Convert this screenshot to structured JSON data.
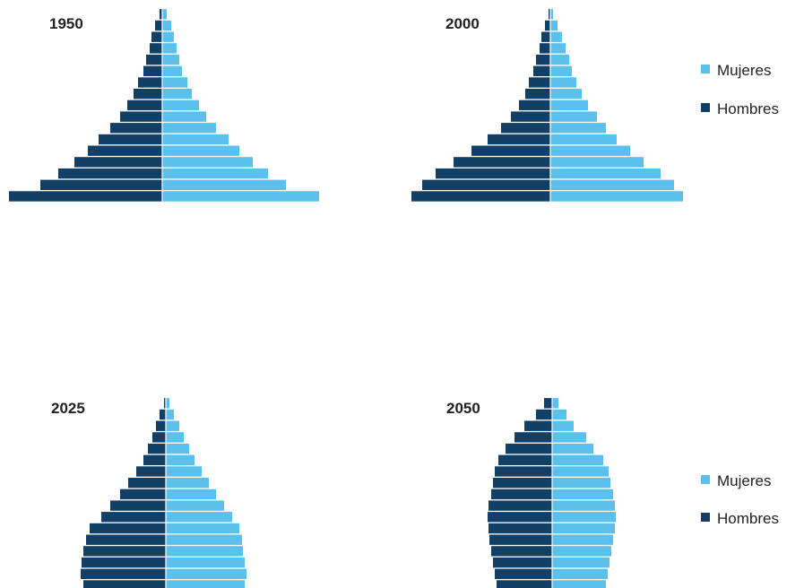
{
  "colors": {
    "mujeres": "#5bc0eb",
    "hombres": "#123f66",
    "divider": "#ffffff"
  },
  "legends": [
    {
      "items": [
        {
          "label": "Mujeres",
          "color": "#5bc0eb"
        },
        {
          "label": "Hombres",
          "color": "#123f66"
        }
      ]
    },
    {
      "items": [
        {
          "label": "Mujeres",
          "color": "#5bc0eb"
        },
        {
          "label": "Hombres",
          "color": "#123f66"
        }
      ]
    }
  ],
  "chart_data": [
    {
      "type": "bar",
      "orientation": "horizontal-pyramid",
      "title": "1950",
      "xlim": [
        -175,
        175
      ],
      "series": [
        {
          "name": "Mujeres",
          "values": [
            175,
            138,
            118,
            101,
            86,
            74,
            60,
            49,
            41,
            33,
            28,
            22,
            19,
            16,
            13,
            10,
            5
          ]
        },
        {
          "name": "Hombres",
          "values": [
            171,
            136,
            116,
            98,
            83,
            71,
            58,
            47,
            39,
            32,
            27,
            21,
            18,
            14,
            12,
            8,
            3
          ]
        }
      ]
    },
    {
      "type": "bar",
      "orientation": "horizontal-pyramid",
      "title": "2000",
      "xlim": [
        -175,
        175
      ],
      "series": [
        {
          "name": "Mujeres",
          "values": [
            148,
            138,
            123,
            104,
            89,
            74,
            62,
            52,
            42,
            35,
            29,
            24,
            21,
            17,
            13,
            8,
            3
          ]
        },
        {
          "name": "Hombres",
          "values": [
            155,
            143,
            128,
            108,
            88,
            70,
            55,
            44,
            35,
            28,
            24,
            19,
            16,
            12,
            10,
            6,
            2
          ]
        }
      ]
    },
    {
      "type": "bar",
      "orientation": "horizontal-pyramid",
      "title": "2025",
      "xlim": [
        -175,
        175
      ],
      "series": [
        {
          "name": "Mujeres",
          "values": [
            88,
            90,
            88,
            86,
            85,
            82,
            74,
            65,
            56,
            48,
            40,
            32,
            26,
            20,
            15,
            9,
            4
          ]
        },
        {
          "name": "Hombres",
          "values": [
            92,
            95,
            94,
            92,
            89,
            85,
            72,
            62,
            51,
            42,
            33,
            25,
            20,
            15,
            11,
            7,
            2
          ]
        }
      ]
    },
    {
      "type": "bar",
      "orientation": "horizontal-pyramid",
      "title": "2050",
      "xlim": [
        -175,
        175
      ],
      "series": [
        {
          "name": "Mujeres",
          "values": [
            60,
            62,
            64,
            66,
            68,
            70,
            71,
            70,
            68,
            65,
            63,
            57,
            46,
            38,
            24,
            16,
            7
          ]
        },
        {
          "name": "Hombres",
          "values": [
            62,
            64,
            66,
            68,
            70,
            71,
            72,
            71,
            68,
            66,
            64,
            60,
            52,
            42,
            31,
            18,
            9
          ]
        }
      ]
    }
  ]
}
